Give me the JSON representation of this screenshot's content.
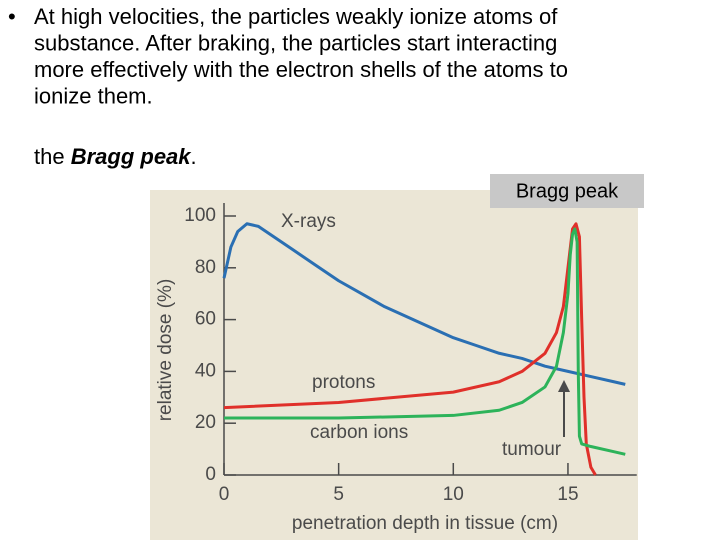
{
  "slide": {
    "bullet_lines": [
      "At high velocities, the particles weakly ionize atoms of",
      "substance. After braking, the particles start interacting",
      "more effectively with the electron shells of the atoms to",
      "ionize them."
    ],
    "bragg_line": {
      "before": "the ",
      "emphasis": "Bragg peak",
      "after": "."
    },
    "callout": "Bragg peak"
  },
  "chart_data": {
    "type": "line",
    "x_label": "penetration depth in tissue (cm)",
    "y_label": "relative dose (%)",
    "annotation": "tumour",
    "xlim": [
      0,
      18
    ],
    "ylim": [
      0,
      105
    ],
    "xticks": [
      0,
      5,
      10,
      15
    ],
    "yticks": [
      0,
      20,
      40,
      60,
      80,
      100
    ],
    "series": [
      {
        "name": "X-rays",
        "color": "#2a6fb3",
        "x": [
          0,
          0.3,
          0.6,
          1,
          1.5,
          2,
          3,
          4,
          5,
          6,
          7,
          8,
          9,
          10,
          11,
          12,
          13,
          14,
          15,
          16,
          17,
          17.5
        ],
        "values": [
          76,
          88,
          94,
          97,
          96,
          93,
          87,
          81,
          75,
          70,
          65,
          61,
          57,
          53,
          50,
          47,
          45,
          42,
          40,
          38,
          36,
          35
        ]
      },
      {
        "name": "protons",
        "color": "#e0302a",
        "x": [
          0,
          5,
          10,
          12,
          13,
          14,
          14.5,
          14.8,
          15,
          15.2,
          15.35,
          15.5,
          15.6,
          15.7,
          15.8,
          16,
          16.2
        ],
        "values": [
          26,
          28,
          32,
          36,
          40,
          47,
          55,
          65,
          80,
          95,
          97,
          92,
          60,
          30,
          12,
          3,
          0
        ]
      },
      {
        "name": "carbon ions",
        "color": "#2db35a",
        "x": [
          0,
          5,
          10,
          12,
          13,
          14,
          14.5,
          14.8,
          15,
          15.1,
          15.2,
          15.3,
          15.4,
          15.45,
          15.5,
          15.6,
          16,
          17,
          17.5
        ],
        "values": [
          22,
          22,
          23,
          25,
          28,
          34,
          42,
          55,
          70,
          85,
          93,
          95,
          90,
          40,
          15,
          12,
          11,
          9,
          8
        ]
      }
    ]
  }
}
